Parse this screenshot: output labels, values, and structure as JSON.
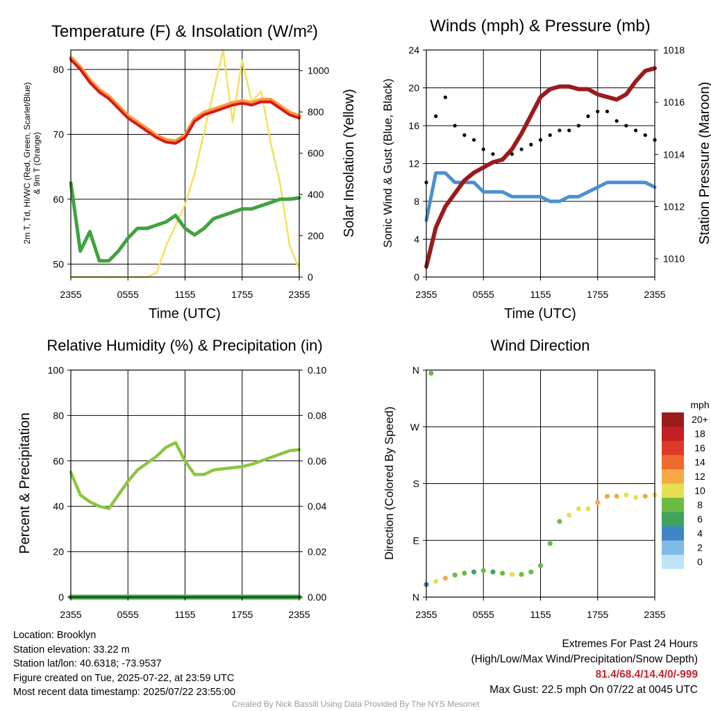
{
  "xticks": [
    "2355",
    "0555",
    "1155",
    "1755",
    "2355"
  ],
  "temperature_panel": {
    "title": "Temperature (F) & Insolation (W/m²)",
    "xlabel": "Time (UTC)",
    "ylabel_left_1": "2m T, Td, HI/WC (Red, Green, Scarlet/Blue)",
    "ylabel_left_2": "& 9m T (Orange)",
    "ylabel_right": "Solar Insolation (Yellow)",
    "yticks_left": [
      "50",
      "60",
      "70",
      "80"
    ],
    "yticks_right": [
      "0",
      "200",
      "400",
      "600",
      "800",
      "1000"
    ],
    "colors": {
      "temp": "#d7191c",
      "temp9m": "#f59a3a",
      "dewpoint": "#3fa33f",
      "solar": "#f4e05a"
    }
  },
  "wind_panel": {
    "title": "Winds (mph) & Pressure (mb)",
    "xlabel": "Time (UTC)",
    "ylabel_left": "Sonic Wind & Gust (Blue, Black)",
    "ylabel_right": "Station Pressure (Maroon)",
    "yticks_left": [
      "0",
      "4",
      "8",
      "12",
      "16",
      "20",
      "24"
    ],
    "yticks_right": [
      "1010",
      "1012",
      "1014",
      "1016",
      "1018"
    ],
    "colors": {
      "wind": "#4a90d0",
      "gust": "#000000",
      "pressure": "#9b1b1b"
    }
  },
  "humidity_panel": {
    "title": "Relative Humidity (%) & Precipitation (in)",
    "ylabel_left": "Percent & Precipitation",
    "yticks_left": [
      "0",
      "20",
      "40",
      "60",
      "80",
      "100"
    ],
    "yticks_right": [
      "0.00",
      "0.02",
      "0.04",
      "0.06",
      "0.08",
      "0.10"
    ],
    "colors": {
      "rh": "#8cc63f",
      "precip": "#3fa33f"
    }
  },
  "direction_panel": {
    "title": "Wind Direction",
    "ylabel_left": "Direction (Colored By Speed)",
    "yticks_left": [
      "N",
      "E",
      "S",
      "W",
      "N"
    ],
    "legend_title": "mph",
    "legend_labels": [
      "0",
      "2",
      "4",
      "6",
      "8",
      "10",
      "12",
      "14",
      "16",
      "18",
      "20+"
    ],
    "legend_colors": [
      "#bfe3f7",
      "#7fbbe6",
      "#3f86c4",
      "#3fa35a",
      "#6bbb45",
      "#e4e052",
      "#f6aa45",
      "#f06a2e",
      "#dd3a2a",
      "#c21e24",
      "#9b1b1b"
    ]
  },
  "info": {
    "location": "Location: Brooklyn",
    "elevation": "Station elevation: 33.22 m",
    "latlon": "Station lat/lon: 40.6318; -73.9537",
    "created": "Figure created on Tue, 2025-07-22, at 23:59 UTC",
    "recent": "Most recent data timestamp: 2025/07/22 23:55:00"
  },
  "extremes": {
    "title": "Extremes For Past 24 Hours",
    "subtitle": "(High/Low/Max Wind/Precipitation/Snow Depth)",
    "values": "81.4/68.4/14.4/0/-999",
    "gust": "Max Gust: 22.5 mph On 07/22 at 0045 UTC"
  },
  "credit": "Created By Nick Bassill Using Data Provided By The NYS Mesonet",
  "chart_data": [
    {
      "type": "line",
      "x": [
        0,
        1,
        2,
        3,
        4,
        5,
        6,
        7,
        8,
        9,
        10,
        11,
        12,
        13,
        14,
        15,
        16,
        17,
        18,
        19,
        20,
        21,
        22,
        23,
        24
      ],
      "series": [
        {
          "values": [
            81.5,
            80,
            78,
            76.5,
            75.5,
            74,
            72.5,
            71.5,
            70.5,
            69.5,
            68.8,
            68.6,
            69.5,
            72,
            73,
            73.5,
            74,
            74.5,
            74.8,
            74.5,
            75,
            75,
            74,
            73,
            72.5
          ]
        },
        {
          "values": [
            62.5,
            52,
            55,
            50.5,
            50.5,
            52,
            54,
            55.5,
            55.5,
            56,
            56.5,
            57.5,
            55.5,
            54.5,
            55.5,
            57,
            57.5,
            58,
            58.5,
            58.5,
            59,
            59.5,
            60,
            60,
            60.2
          ]
        },
        {
          "values": [
            0,
            0,
            0,
            0,
            0,
            0,
            0,
            0,
            0,
            20,
            150,
            250,
            350,
            500,
            700,
            900,
            1100,
            750,
            1050,
            850,
            900,
            650,
            450,
            150,
            40
          ]
        }
      ],
      "ylim": [
        48,
        83
      ],
      "y2lim": [
        0,
        1100
      ]
    },
    {
      "type": "line",
      "x": [
        0,
        1,
        2,
        3,
        4,
        5,
        6,
        7,
        8,
        9,
        10,
        11,
        12,
        13,
        14,
        15,
        16,
        17,
        18,
        19,
        20,
        21,
        22,
        23,
        24
      ],
      "series": [
        {
          "values": [
            6,
            11,
            11,
            10,
            10,
            10,
            9,
            9,
            9,
            8.5,
            8.5,
            8.5,
            8.5,
            8,
            8,
            8.5,
            8.5,
            9,
            9.5,
            10,
            10,
            10,
            10,
            10,
            9.5
          ]
        },
        {
          "values": [
            10,
            17,
            19,
            16,
            15,
            14.5,
            13.5,
            13,
            12.5,
            13,
            13.5,
            14,
            14.5,
            15,
            15.5,
            15.5,
            16,
            17,
            17.5,
            17.5,
            16.5,
            16,
            15.5,
            15,
            14.5
          ]
        },
        {
          "values": [
            1009.7,
            1011.2,
            1012,
            1012.5,
            1013,
            1013.3,
            1013.5,
            1013.7,
            1013.8,
            1014.2,
            1014.8,
            1015.5,
            1016.2,
            1016.5,
            1016.6,
            1016.6,
            1016.5,
            1016.5,
            1016.3,
            1016.2,
            1016.1,
            1016.3,
            1016.8,
            1017.2,
            1017.3
          ]
        }
      ],
      "ylim": [
        0,
        24
      ],
      "y2lim": [
        1009.3,
        1018
      ]
    },
    {
      "type": "line",
      "x": [
        0,
        1,
        2,
        3,
        4,
        5,
        6,
        7,
        8,
        9,
        10,
        11,
        12,
        13,
        14,
        15,
        16,
        17,
        18,
        19,
        20,
        21,
        22,
        23,
        24
      ],
      "series": [
        {
          "values": [
            55,
            45,
            42,
            40,
            39,
            45,
            51,
            56,
            59,
            62,
            66,
            68,
            60,
            54,
            54,
            56,
            56.5,
            57,
            57.5,
            58.5,
            60,
            61.5,
            63,
            64.5,
            65
          ]
        },
        {
          "values": [
            0,
            0,
            0,
            0,
            0,
            0,
            0,
            0,
            0,
            0,
            0,
            0,
            0,
            0,
            0,
            0,
            0,
            0,
            0,
            0,
            0,
            0,
            0,
            0,
            0
          ]
        }
      ],
      "ylim": [
        0,
        100
      ],
      "y2lim": [
        0,
        0.1
      ]
    },
    {
      "type": "scatter",
      "x": [
        0,
        0.5,
        1,
        2,
        3,
        4,
        5,
        6,
        7,
        8,
        9,
        10,
        11,
        12,
        13,
        14,
        15,
        16,
        17,
        18,
        19,
        20,
        21,
        22,
        23,
        24
      ],
      "y": [
        20,
        355,
        25,
        30,
        35,
        38,
        40,
        42,
        40,
        38,
        36,
        36,
        40,
        50,
        85,
        120,
        130,
        140,
        140,
        150,
        160,
        160,
        162,
        158,
        160,
        162
      ],
      "speed": [
        4,
        9,
        10,
        12,
        9,
        8,
        7,
        8,
        7,
        9,
        10,
        8,
        9,
        8,
        8,
        9,
        10,
        11,
        10,
        12,
        13,
        12,
        11,
        10,
        12,
        11
      ],
      "ylim": [
        0,
        360
      ]
    }
  ]
}
